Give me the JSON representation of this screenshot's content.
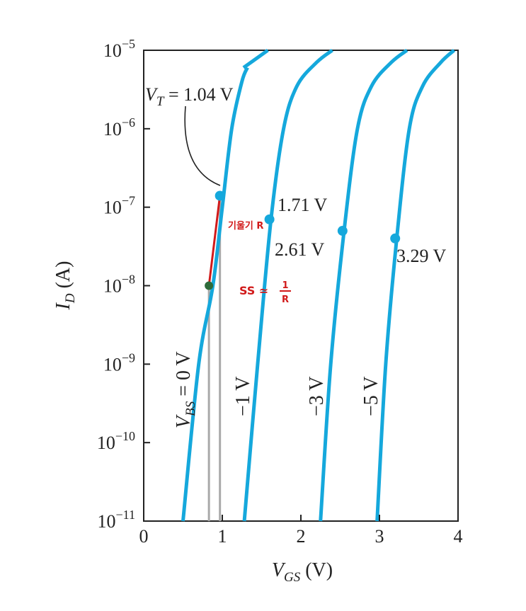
{
  "chart_data": {
    "type": "line",
    "title": "",
    "xlabel": {
      "main": "V",
      "sub": "GS",
      "unit": " (V)"
    },
    "ylabel": {
      "main": "I",
      "sub": "D",
      "unit": " (A)"
    },
    "x_scale": "linear",
    "y_scale": "log",
    "xlim": [
      0,
      4
    ],
    "ylim": [
      1e-11,
      1e-05
    ],
    "x_ticks": [
      {
        "value": 0,
        "label": "0"
      },
      {
        "value": 1,
        "label": "1"
      },
      {
        "value": 2,
        "label": "2"
      },
      {
        "value": 3,
        "label": "3"
      },
      {
        "value": 4,
        "label": "4"
      }
    ],
    "y_ticks": [
      {
        "value": 1e-05,
        "base": "10",
        "exp": "−5"
      },
      {
        "value": 1e-06,
        "base": "10",
        "exp": "−6"
      },
      {
        "value": 1e-07,
        "base": "10",
        "exp": "−7"
      },
      {
        "value": 1e-08,
        "base": "10",
        "exp": "−8"
      },
      {
        "value": 1e-09,
        "base": "10",
        "exp": "−9"
      },
      {
        "value": 1e-10,
        "base": "10",
        "exp": "−10"
      },
      {
        "value": 1e-11,
        "base": "10",
        "exp": "−11"
      }
    ],
    "grid": false,
    "series_color": "#15a8dc",
    "series": [
      {
        "label": {
          "text": "V",
          "sub": "BS",
          "rest": " = 0 V"
        },
        "points": [
          [
            0.5,
            1e-11
          ],
          [
            0.7,
            1e-09
          ],
          [
            0.88,
            1e-08
          ],
          [
            1.0,
            1e-07
          ],
          [
            1.12,
            1e-06
          ],
          [
            1.25,
            4e-06
          ],
          [
            1.32,
            6e-06
          ]
        ],
        "gap_segment": [
          [
            1.27,
            6e-06
          ],
          [
            1.58,
            1e-05
          ]
        ],
        "vt": {
          "x": 0.97,
          "y": 1.4e-07,
          "label": "1.04 V"
        }
      },
      {
        "label": {
          "text": "−1 V"
        },
        "points": [
          [
            1.28,
            1e-11
          ],
          [
            1.45,
            1e-09
          ],
          [
            1.62,
            7e-08
          ],
          [
            1.78,
            1e-06
          ],
          [
            1.95,
            3.5e-06
          ],
          [
            2.2,
            7e-06
          ],
          [
            2.4,
            1e-05
          ]
        ],
        "vt": {
          "x": 1.6,
          "y": 7e-08,
          "label": "1.71 V"
        }
      },
      {
        "label": {
          "text": "−3 V"
        },
        "points": [
          [
            2.25,
            1e-11
          ],
          [
            2.38,
            1e-09
          ],
          [
            2.55,
            5e-08
          ],
          [
            2.72,
            1e-06
          ],
          [
            2.9,
            3.5e-06
          ],
          [
            3.15,
            7e-06
          ],
          [
            3.35,
            1e-05
          ]
        ],
        "vt": {
          "x": 2.53,
          "y": 5e-08,
          "label": "2.61 V"
        }
      },
      {
        "label": {
          "text": "−5 V"
        },
        "points": [
          [
            2.97,
            1e-11
          ],
          [
            3.08,
            1e-09
          ],
          [
            3.22,
            4e-08
          ],
          [
            3.38,
            1e-06
          ],
          [
            3.55,
            3.5e-06
          ],
          [
            3.78,
            7e-06
          ],
          [
            3.95,
            1e-05
          ]
        ],
        "vt": {
          "x": 3.2,
          "y": 4e-08,
          "label": "3.29 V"
        }
      }
    ],
    "vt_annotation": {
      "prefix": "V",
      "sub": "T",
      "rest": " = 1.04 V"
    },
    "handwritten": {
      "slope_label": "기울기 R",
      "ss_label": "SS ≃",
      "ss_num": "1",
      "ss_den": "R",
      "red_segment": [
        [
          0.83,
          1e-08
        ],
        [
          0.97,
          1.4e-07
        ]
      ],
      "green_point": [
        0.83,
        1e-08
      ],
      "drop_lines_x": [
        0.83,
        0.97
      ],
      "red_color": "#d11a1a",
      "green_color": "#2e6b3a",
      "drop_color": "#a9a9a9"
    }
  }
}
